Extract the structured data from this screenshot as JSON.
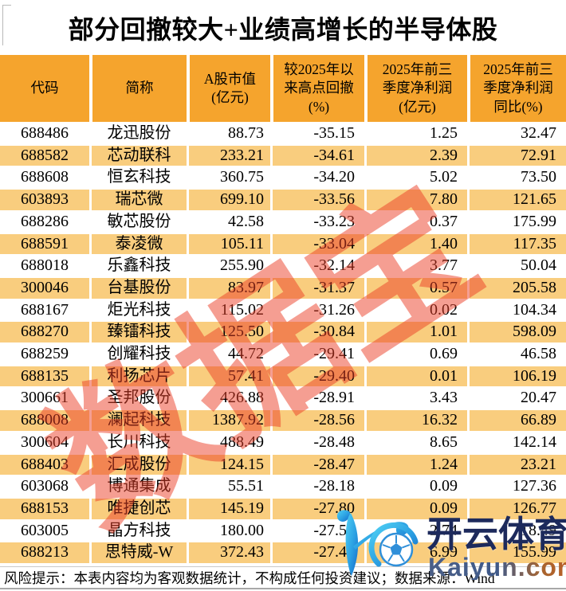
{
  "title": "部分回撤较大+业绩高增长的半导体股",
  "footer": {
    "text": "风险提示：本表内容均为客观数据统计，不构成任何投资建议；数据来源：Wind"
  },
  "watermarks": {
    "diagonal_text": "数据宝",
    "logo_brand": "开云体育",
    "logo_domain": "Kaiyun.com"
  },
  "colors": {
    "header_bg": "#F5A42D",
    "row_alt_bg": "#F9CD7E",
    "watermark_red": "#EB3E26",
    "logo_navy": "#1D2A5C",
    "logo_blue_light": "#4FD0F4",
    "logo_blue_dark": "#1468C8"
  },
  "chart_data": {
    "type": "table",
    "title": "部分回撤较大+业绩高增长的半导体股",
    "columns": [
      "代码",
      "简称",
      "A股市值\n(亿元)",
      "较2025年以\n来高点回撤\n(%)",
      "2025年前三\n季度净利润\n(亿元)",
      "2025年前三\n季度净利润\n同比(%)"
    ],
    "rows": [
      [
        "688486",
        "龙迅股份",
        "88.73",
        "-35.15",
        "1.25",
        "32.47"
      ],
      [
        "688582",
        "芯动联科",
        "233.21",
        "-34.61",
        "2.39",
        "72.91"
      ],
      [
        "688608",
        "恒玄科技",
        "360.75",
        "-34.20",
        "5.02",
        "73.50"
      ],
      [
        "603893",
        "瑞芯微",
        "699.10",
        "-33.56",
        "7.80",
        "121.65"
      ],
      [
        "688286",
        "敏芯股份",
        "42.58",
        "-33.23",
        "0.37",
        "175.99"
      ],
      [
        "688591",
        "泰凌微",
        "105.11",
        "-33.04",
        "1.40",
        "117.35"
      ],
      [
        "688018",
        "乐鑫科技",
        "255.90",
        "-32.14",
        "3.77",
        "50.04"
      ],
      [
        "300046",
        "台基股份",
        "83.97",
        "-31.37",
        "0.57",
        "205.58"
      ],
      [
        "688167",
        "炬光科技",
        "115.02",
        "-31.26",
        "0.02",
        "104.34"
      ],
      [
        "688270",
        "臻镭科技",
        "125.50",
        "-30.84",
        "1.01",
        "598.09"
      ],
      [
        "688259",
        "创耀科技",
        "44.72",
        "-29.41",
        "0.69",
        "46.58"
      ],
      [
        "688135",
        "利扬芯片",
        "57.41",
        "-29.40",
        "0.01",
        "106.19"
      ],
      [
        "300661",
        "圣邦股份",
        "426.88",
        "-28.91",
        "3.43",
        "20.47"
      ],
      [
        "688008",
        "澜起科技",
        "1387.92",
        "-28.56",
        "16.32",
        "66.89"
      ],
      [
        "300604",
        "长川科技",
        "488.49",
        "-28.48",
        "8.65",
        "142.14"
      ],
      [
        "688403",
        "汇成股份",
        "124.15",
        "-28.47",
        "1.24",
        "23.21"
      ],
      [
        "603068",
        "博通集成",
        "55.51",
        "-28.18",
        "0.09",
        "127.36"
      ],
      [
        "688153",
        "唯捷创芯",
        "145.19",
        "-27.80",
        "0.09",
        "126.77"
      ],
      [
        "603005",
        "晶方科技",
        "180.00",
        "-27.54",
        "2.74",
        "18.49"
      ],
      [
        "688213",
        "思特威-W",
        "372.43",
        "-27.44",
        "6.99",
        "155.99"
      ]
    ]
  }
}
